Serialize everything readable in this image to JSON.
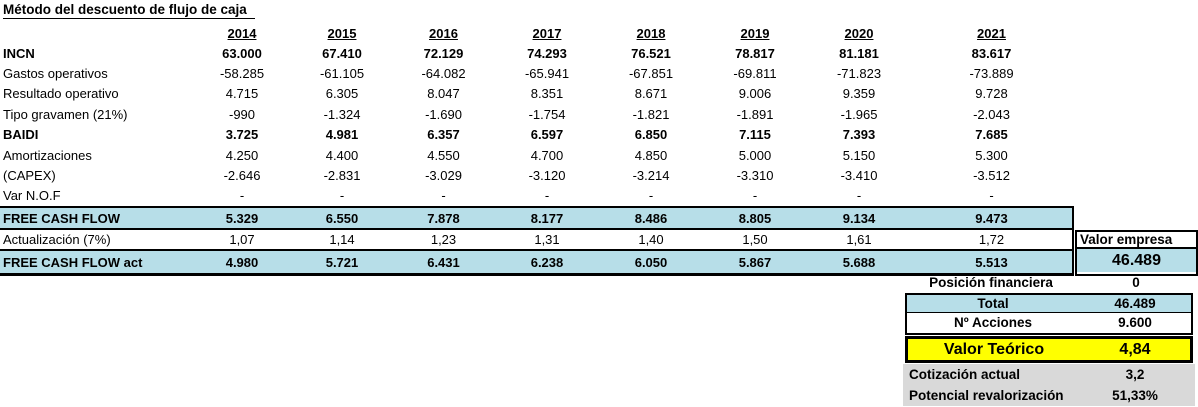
{
  "title": "Método del descuento de flujo de caja",
  "colors": {
    "band_blue": "#B7DEE8",
    "highlight_yellow": "#FFFF00",
    "footer_gray": "#D9D9D9"
  },
  "table": {
    "years": [
      "2014",
      "2015",
      "2016",
      "2017",
      "2018",
      "2019",
      "2020",
      "2021"
    ],
    "rows": [
      {
        "label": "INCN",
        "kind": "bold",
        "values": [
          "63.000",
          "67.410",
          "72.129",
          "74.293",
          "76.521",
          "78.817",
          "81.181",
          "83.617"
        ]
      },
      {
        "label": "Gastos operativos",
        "kind": "plain",
        "values": [
          "-58.285",
          "-61.105",
          "-64.082",
          "-65.941",
          "-67.851",
          "-69.811",
          "-71.823",
          "-73.889"
        ]
      },
      {
        "label": "Resultado operativo",
        "kind": "plain",
        "values": [
          "4.715",
          "6.305",
          "8.047",
          "8.351",
          "8.671",
          "9.006",
          "9.359",
          "9.728"
        ]
      },
      {
        "label": "Tipo gravamen (21%)",
        "kind": "plain",
        "values": [
          "-990",
          "-1.324",
          "-1.690",
          "-1.754",
          "-1.821",
          "-1.891",
          "-1.965",
          "-2.043"
        ]
      },
      {
        "label": "BAIDI",
        "kind": "bold",
        "values": [
          "3.725",
          "4.981",
          "6.357",
          "6.597",
          "6.850",
          "7.115",
          "7.393",
          "7.685"
        ]
      },
      {
        "label": "Amortizaciones",
        "kind": "plain",
        "values": [
          "4.250",
          "4.400",
          "4.550",
          "4.700",
          "4.850",
          "5.000",
          "5.150",
          "5.300"
        ]
      },
      {
        "label": "(CAPEX)",
        "kind": "plain",
        "values": [
          "-2.646",
          "-2.831",
          "-3.029",
          "-3.120",
          "-3.214",
          "-3.310",
          "-3.410",
          "-3.512"
        ]
      },
      {
        "label": "Var N.O.F",
        "kind": "plain",
        "values": [
          "-",
          "-",
          "-",
          "-",
          "-",
          "-",
          "-",
          "-"
        ]
      },
      {
        "label": "FREE CASH FLOW",
        "kind": "band",
        "values": [
          "5.329",
          "6.550",
          "7.878",
          "8.177",
          "8.486",
          "8.805",
          "9.134",
          "9.473"
        ]
      },
      {
        "label": "Actualización (7%)",
        "kind": "rate",
        "values": [
          "1,07",
          "1,14",
          "1,23",
          "1,31",
          "1,40",
          "1,50",
          "1,61",
          "1,72"
        ]
      },
      {
        "label": "FREE CASH FLOW act",
        "kind": "band-final",
        "values": [
          "4.980",
          "5.721",
          "6.431",
          "6.238",
          "6.050",
          "5.867",
          "5.688",
          "5.513"
        ]
      }
    ]
  },
  "valor_empresa": {
    "label": "Valor empresa",
    "value": "46.489"
  },
  "summary": {
    "posicion_financiera": {
      "label": "Posición financiera",
      "value": "0"
    },
    "total": {
      "label": "Total",
      "value": "46.489"
    },
    "acciones": {
      "label": "Nº Acciones",
      "value": "9.600"
    },
    "valor_teorico": {
      "label": "Valor Teórico",
      "value": "4,84"
    },
    "cotizacion_actual": {
      "label": "Cotización actual",
      "value": "3,2"
    },
    "potencial_revalorizacion": {
      "label": "Potencial revalorización",
      "value": "51,33%"
    }
  }
}
